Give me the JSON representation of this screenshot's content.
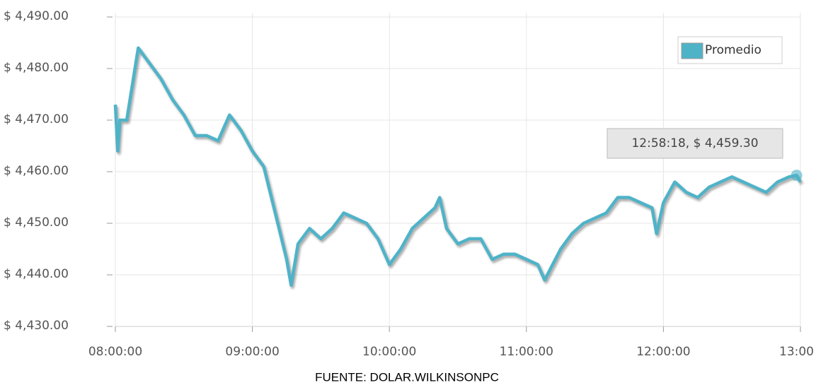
{
  "chart_data": {
    "type": "line",
    "x": [
      8.0,
      8.017,
      8.033,
      8.083,
      8.167,
      8.25,
      8.333,
      8.417,
      8.5,
      8.583,
      8.667,
      8.75,
      8.833,
      8.917,
      9.0,
      9.083,
      9.167,
      9.25,
      9.283,
      9.333,
      9.417,
      9.5,
      9.583,
      9.667,
      9.75,
      9.833,
      9.917,
      10.0,
      10.083,
      10.167,
      10.25,
      10.333,
      10.367,
      10.417,
      10.5,
      10.583,
      10.667,
      10.75,
      10.833,
      10.917,
      11.0,
      11.083,
      11.133,
      11.25,
      11.333,
      11.417,
      11.5,
      11.583,
      11.667,
      11.75,
      11.833,
      11.917,
      11.95,
      12.0,
      12.083,
      12.167,
      12.25,
      12.333,
      12.417,
      12.5,
      12.583,
      12.667,
      12.75,
      12.833,
      12.917,
      12.972,
      13.0
    ],
    "series": [
      {
        "name": "Promedio",
        "color": "#4fb3c8",
        "values": [
          4473,
          4464,
          4470,
          4470,
          4484,
          4481,
          4478,
          4474,
          4471,
          4467,
          4467,
          4466,
          4471,
          4468,
          4464,
          4461,
          4452,
          4443,
          4438,
          4446,
          4449,
          4447,
          4449,
          4452,
          4451,
          4450,
          4447,
          4442,
          4445,
          4449,
          4451,
          4453,
          4455,
          4449,
          4446,
          4447,
          4447,
          4443,
          4444,
          4444,
          4443,
          4442,
          4439,
          4445,
          4448,
          4450,
          4451,
          4452,
          4455,
          4455,
          4454,
          4453,
          4448,
          4454,
          4458,
          4456,
          4455,
          4457,
          4458,
          4459,
          4458,
          4457,
          4456,
          4458,
          4459,
          4459.3,
          4458
        ]
      }
    ],
    "xlim": [
      8,
      13
    ],
    "xticks": [
      {
        "value": 8,
        "label": "08:00:00"
      },
      {
        "value": 9,
        "label": "09:00:00"
      },
      {
        "value": 10,
        "label": "10:00:00"
      },
      {
        "value": 11,
        "label": "11:00:00"
      },
      {
        "value": 12,
        "label": "12:00:00"
      },
      {
        "value": 13,
        "label": "13:00"
      }
    ],
    "ylim": [
      4430,
      4490
    ],
    "yticks": [
      {
        "value": 4430,
        "label": "$ 4,430.00"
      },
      {
        "value": 4440,
        "label": "$ 4,440.00"
      },
      {
        "value": 4450,
        "label": "$ 4,450.00"
      },
      {
        "value": 4460,
        "label": "$ 4,460.00"
      },
      {
        "value": 4470,
        "label": "$ 4,470.00"
      },
      {
        "value": 4480,
        "label": "$ 4,480.00"
      },
      {
        "value": 4490,
        "label": "$ 4,490.00"
      }
    ],
    "grid": true,
    "legend": "top-right",
    "tooltip": "12:58:18, $ 4,459.30",
    "source": "FUENTE: DOLAR.WILKINSONPC"
  }
}
